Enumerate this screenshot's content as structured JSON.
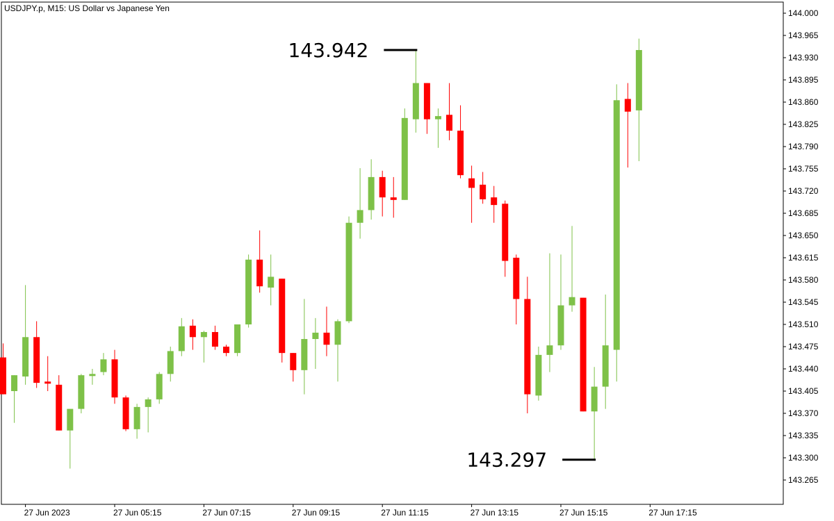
{
  "chart_data": {
    "type": "candlestick",
    "title": "USDJPY.p, M15:  US Dollar vs Japanese Yen",
    "ylim": [
      143.23,
      144.02
    ],
    "y_ticks": [
      144.0,
      143.965,
      143.93,
      143.895,
      143.86,
      143.825,
      143.79,
      143.755,
      143.72,
      143.685,
      143.65,
      143.615,
      143.58,
      143.545,
      143.51,
      143.475,
      143.44,
      143.405,
      143.37,
      143.335,
      143.3,
      143.265
    ],
    "x_ticks": [
      {
        "index": 2,
        "label": "27 Jun 2023"
      },
      {
        "index": 10,
        "label": "27 Jun 05:15"
      },
      {
        "index": 18,
        "label": "27 Jun 07:15"
      },
      {
        "index": 26,
        "label": "27 Jun 09:15"
      },
      {
        "index": 34,
        "label": "27 Jun 11:15"
      },
      {
        "index": 42,
        "label": "27 Jun 13:15"
      },
      {
        "index": 50,
        "label": "27 Jun 15:15"
      },
      {
        "index": 58,
        "label": "27 Jun 17:15"
      }
    ],
    "bull_color": "#7ec148",
    "bear_color": "#ff0000",
    "candles": [
      {
        "o": 143.458,
        "h": 143.48,
        "l": 143.4,
        "c": 143.4
      },
      {
        "o": 143.405,
        "h": 143.43,
        "l": 143.355,
        "c": 143.43
      },
      {
        "o": 143.428,
        "h": 143.572,
        "l": 143.415,
        "c": 143.49
      },
      {
        "o": 143.49,
        "h": 143.515,
        "l": 143.41,
        "c": 143.418
      },
      {
        "o": 143.42,
        "h": 143.46,
        "l": 143.405,
        "c": 143.417
      },
      {
        "o": 143.415,
        "h": 143.43,
        "l": 143.343,
        "c": 143.343
      },
      {
        "o": 143.343,
        "h": 143.375,
        "l": 143.283,
        "c": 143.377
      },
      {
        "o": 143.377,
        "h": 143.432,
        "l": 143.37,
        "c": 143.43
      },
      {
        "o": 143.43,
        "h": 143.44,
        "l": 143.415,
        "c": 143.432
      },
      {
        "o": 143.435,
        "h": 143.465,
        "l": 143.43,
        "c": 143.455
      },
      {
        "o": 143.455,
        "h": 143.47,
        "l": 143.385,
        "c": 143.395
      },
      {
        "o": 143.395,
        "h": 143.398,
        "l": 143.342,
        "c": 143.345
      },
      {
        "o": 143.345,
        "h": 143.385,
        "l": 143.33,
        "c": 143.38
      },
      {
        "o": 143.38,
        "h": 143.395,
        "l": 143.34,
        "c": 143.392
      },
      {
        "o": 143.392,
        "h": 143.435,
        "l": 143.385,
        "c": 143.432
      },
      {
        "o": 143.432,
        "h": 143.475,
        "l": 143.42,
        "c": 143.468
      },
      {
        "o": 143.468,
        "h": 143.52,
        "l": 143.46,
        "c": 143.507
      },
      {
        "o": 143.508,
        "h": 143.518,
        "l": 143.47,
        "c": 143.49
      },
      {
        "o": 143.49,
        "h": 143.5,
        "l": 143.45,
        "c": 143.498
      },
      {
        "o": 143.498,
        "h": 143.508,
        "l": 143.47,
        "c": 143.475
      },
      {
        "o": 143.475,
        "h": 143.478,
        "l": 143.46,
        "c": 143.465
      },
      {
        "o": 143.465,
        "h": 143.51,
        "l": 143.46,
        "c": 143.51
      },
      {
        "o": 143.51,
        "h": 143.62,
        "l": 143.505,
        "c": 143.612
      },
      {
        "o": 143.612,
        "h": 143.658,
        "l": 143.56,
        "c": 143.57
      },
      {
        "o": 143.568,
        "h": 143.62,
        "l": 143.54,
        "c": 143.585
      },
      {
        "o": 143.582,
        "h": 143.582,
        "l": 143.45,
        "c": 143.465
      },
      {
        "o": 143.465,
        "h": 143.465,
        "l": 143.42,
        "c": 143.438
      },
      {
        "o": 143.438,
        "h": 143.55,
        "l": 143.4,
        "c": 143.487
      },
      {
        "o": 143.487,
        "h": 143.52,
        "l": 143.44,
        "c": 143.497
      },
      {
        "o": 143.497,
        "h": 143.538,
        "l": 143.46,
        "c": 143.478
      },
      {
        "o": 143.478,
        "h": 143.518,
        "l": 143.42,
        "c": 143.515
      },
      {
        "o": 143.515,
        "h": 143.68,
        "l": 143.512,
        "c": 143.67
      },
      {
        "o": 143.67,
        "h": 143.756,
        "l": 143.645,
        "c": 143.69
      },
      {
        "o": 143.69,
        "h": 143.77,
        "l": 143.675,
        "c": 143.742
      },
      {
        "o": 143.742,
        "h": 143.752,
        "l": 143.68,
        "c": 143.71
      },
      {
        "o": 143.71,
        "h": 143.742,
        "l": 143.678,
        "c": 143.706
      },
      {
        "o": 143.706,
        "h": 143.85,
        "l": 143.706,
        "c": 143.835
      },
      {
        "o": 143.833,
        "h": 143.942,
        "l": 143.812,
        "c": 143.89
      },
      {
        "o": 143.89,
        "h": 143.89,
        "l": 143.81,
        "c": 143.833
      },
      {
        "o": 143.833,
        "h": 143.85,
        "l": 143.788,
        "c": 143.838
      },
      {
        "o": 143.84,
        "h": 143.89,
        "l": 143.8,
        "c": 143.815
      },
      {
        "o": 143.815,
        "h": 143.855,
        "l": 143.74,
        "c": 143.745
      },
      {
        "o": 143.74,
        "h": 143.76,
        "l": 143.67,
        "c": 143.725
      },
      {
        "o": 143.73,
        "h": 143.75,
        "l": 143.7,
        "c": 143.707
      },
      {
        "o": 143.71,
        "h": 143.728,
        "l": 143.67,
        "c": 143.698
      },
      {
        "o": 143.7,
        "h": 143.705,
        "l": 143.585,
        "c": 143.61
      },
      {
        "o": 143.615,
        "h": 143.62,
        "l": 143.51,
        "c": 143.55
      },
      {
        "o": 143.55,
        "h": 143.585,
        "l": 143.37,
        "c": 143.4
      },
      {
        "o": 143.398,
        "h": 143.475,
        "l": 143.39,
        "c": 143.462
      },
      {
        "o": 143.462,
        "h": 143.622,
        "l": 143.435,
        "c": 143.477
      },
      {
        "o": 143.477,
        "h": 143.62,
        "l": 143.47,
        "c": 143.54
      },
      {
        "o": 143.54,
        "h": 143.665,
        "l": 143.53,
        "c": 143.553
      },
      {
        "o": 143.552,
        "h": 143.552,
        "l": 143.373,
        "c": 143.373
      },
      {
        "o": 143.373,
        "h": 143.443,
        "l": 143.297,
        "c": 143.412
      },
      {
        "o": 143.412,
        "h": 143.557,
        "l": 143.377,
        "c": 143.477
      },
      {
        "o": 143.47,
        "h": 143.888,
        "l": 143.42,
        "c": 143.863
      },
      {
        "o": 143.865,
        "h": 143.89,
        "l": 143.757,
        "c": 143.845
      },
      {
        "o": 143.847,
        "h": 143.96,
        "l": 143.767,
        "c": 143.942
      }
    ],
    "annotations": [
      {
        "label": "143.942",
        "value": 143.942,
        "candle_index": 37,
        "position": "left"
      },
      {
        "label": "143.297",
        "value": 143.297,
        "candle_index": 53,
        "position": "left"
      }
    ]
  }
}
